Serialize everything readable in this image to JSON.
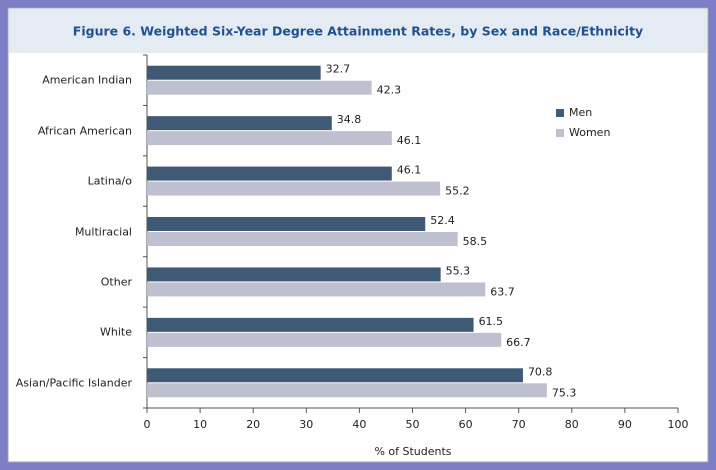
{
  "chart_data": {
    "type": "barh",
    "title": "Figure 6. Weighted Six-Year Degree Attainment Rates, by Sex and Race/Ethnicity",
    "xlabel": "% of Students",
    "categories": [
      "American Indian",
      "African American",
      "Latina/o",
      "Multiracial",
      "Other",
      "White",
      "Asian/Pacific Islander"
    ],
    "series": [
      {
        "name": "Men",
        "color": "#3f5a74",
        "values": [
          32.7,
          34.8,
          46.1,
          52.4,
          55.3,
          61.5,
          70.8
        ]
      },
      {
        "name": "Women",
        "color": "#bfc0cf",
        "values": [
          42.3,
          46.1,
          55.2,
          58.5,
          63.7,
          66.7,
          75.3
        ]
      }
    ],
    "xlim": [
      0,
      100
    ],
    "xticks": [
      0,
      10,
      20,
      30,
      40,
      50,
      60,
      70,
      80,
      90,
      100
    ],
    "legend": "upper right"
  }
}
